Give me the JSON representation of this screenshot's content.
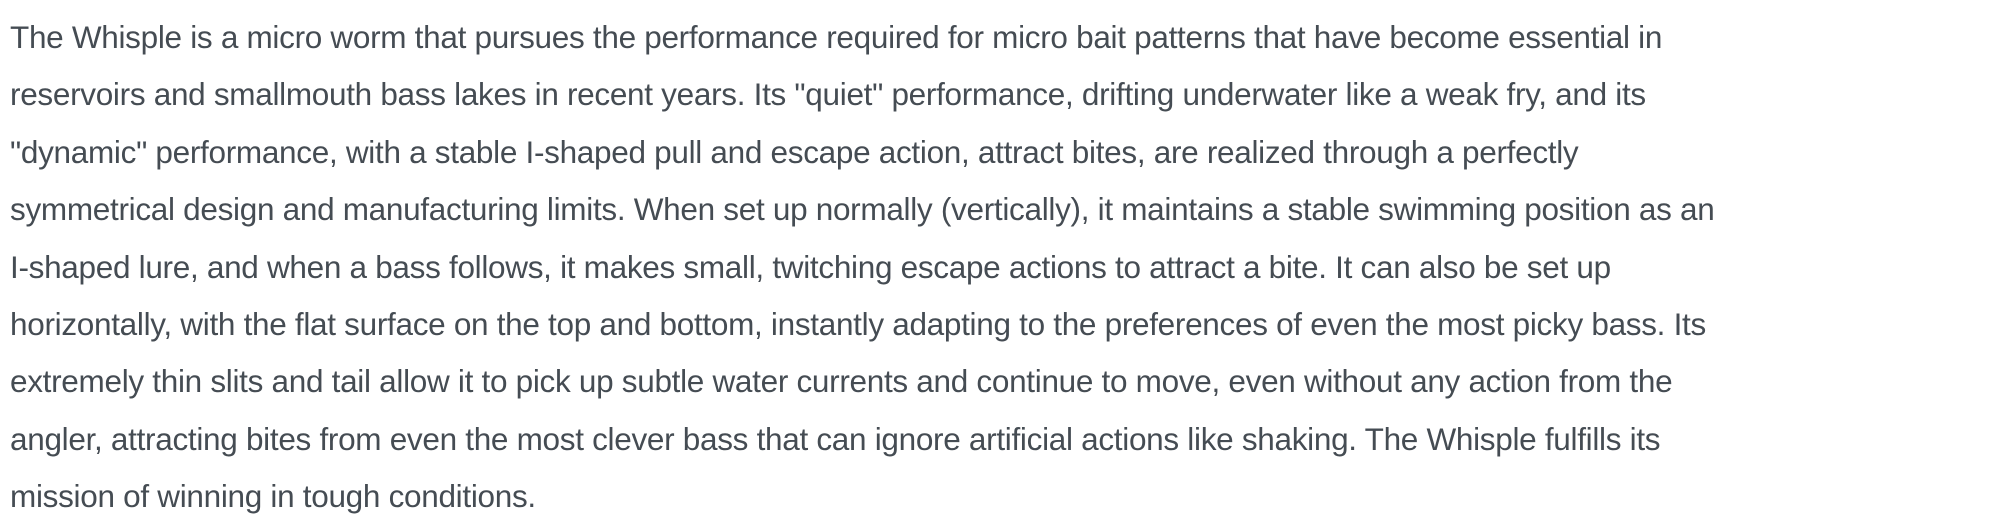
{
  "page": {
    "background_color": "#ffffff",
    "text_color": "#454c53"
  },
  "paragraph": {
    "full_text": "The Whisple is a micro worm that pursues the performance required for micro bait patterns that have become essential in reservoirs and smallmouth bass lakes in recent years. Its \"quiet\" performance, drifting underwater like a weak fry, and its \"dynamic\" performance, with a stable I-shaped pull and escape action, attract bites, are realized through a perfectly symmetrical design and manufacturing limits. When set up normally (vertically), it maintains a stable swimming position as an I-shaped lure, and when a bass follows, it makes small, twitching escape actions to attract a bite. It can also be set up horizontally, with the flat surface on the top and bottom, instantly adapting to the preferences of even the most picky bass. Its extremely thin slits and tail allow it to pick up subtle water currents and continue to move, even without any action from the angler, attracting bites from even the most clever bass that can ignore artificial actions like shaking. The Whisple fulfills its mission of winning in tough conditions.",
    "lines": [
      "The Whisple is a micro worm that pursues the performance required for micro bait patterns that have become essential in",
      "reservoirs and smallmouth bass lakes in recent years. Its \"quiet\" performance, drifting underwater like a weak fry, and its",
      "\"dynamic\" performance, with a stable I-shaped pull and escape action, attract bites, are realized through a perfectly",
      "symmetrical design and manufacturing limits. When set up normally (vertically), it maintains a stable swimming position as an",
      "I-shaped lure, and when a bass follows, it makes small, twitching escape actions to attract a bite. It can also be set up",
      "horizontally, with the flat surface on the top and bottom, instantly adapting to the preferences of even the most picky bass. Its",
      "extremely thin slits and tail allow it to pick up subtle water currents and continue to move, even without any action from the",
      "angler, attracting bites from even the most clever bass that can ignore artificial actions like shaking. The Whisple fulfills its",
      "mission of winning in tough conditions."
    ]
  }
}
